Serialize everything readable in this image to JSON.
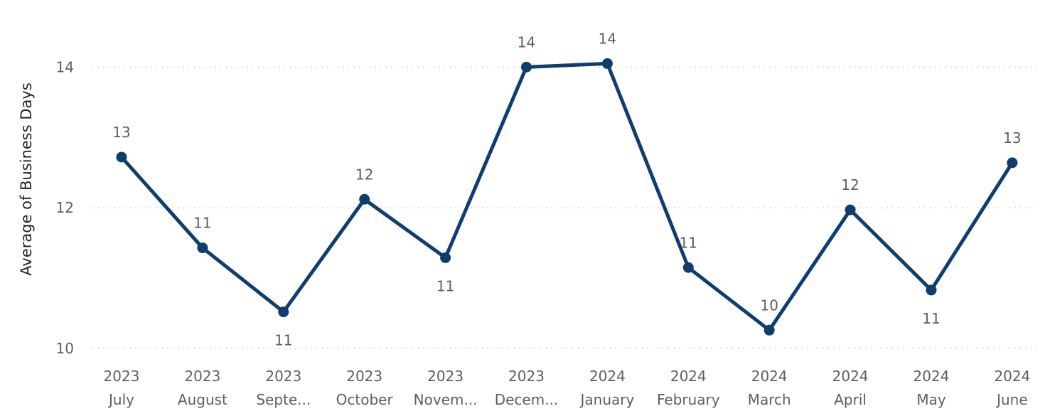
{
  "chart_data": {
    "type": "line",
    "ylabel": "Average of Business Days",
    "xlabel": "",
    "ylim": [
      10,
      14.6
    ],
    "yticks": [
      "10",
      "12",
      "14"
    ],
    "grid": true,
    "color": "#0f3d6e",
    "categories": [
      {
        "year": "2023",
        "month": "July"
      },
      {
        "year": "2023",
        "month": "August"
      },
      {
        "year": "2023",
        "month": "Septe..."
      },
      {
        "year": "2023",
        "month": "October"
      },
      {
        "year": "2023",
        "month": "Novem..."
      },
      {
        "year": "2023",
        "month": "Decem..."
      },
      {
        "year": "2024",
        "month": "January"
      },
      {
        "year": "2024",
        "month": "February"
      },
      {
        "year": "2024",
        "month": "March"
      },
      {
        "year": "2024",
        "month": "April"
      },
      {
        "year": "2024",
        "month": "May"
      },
      {
        "year": "2024",
        "month": "June"
      }
    ],
    "values": [
      12.72,
      11.43,
      10.52,
      12.12,
      11.29,
      14.0,
      14.05,
      11.15,
      10.26,
      11.97,
      10.83,
      12.64
    ],
    "data_labels": [
      "13",
      "11",
      "11",
      "12",
      "11",
      "14",
      "14",
      "11",
      "10",
      "12",
      "11",
      "13"
    ],
    "label_positions": [
      "above",
      "above",
      "below",
      "above",
      "below",
      "above",
      "above",
      "above",
      "above",
      "above",
      "below",
      "above"
    ]
  }
}
